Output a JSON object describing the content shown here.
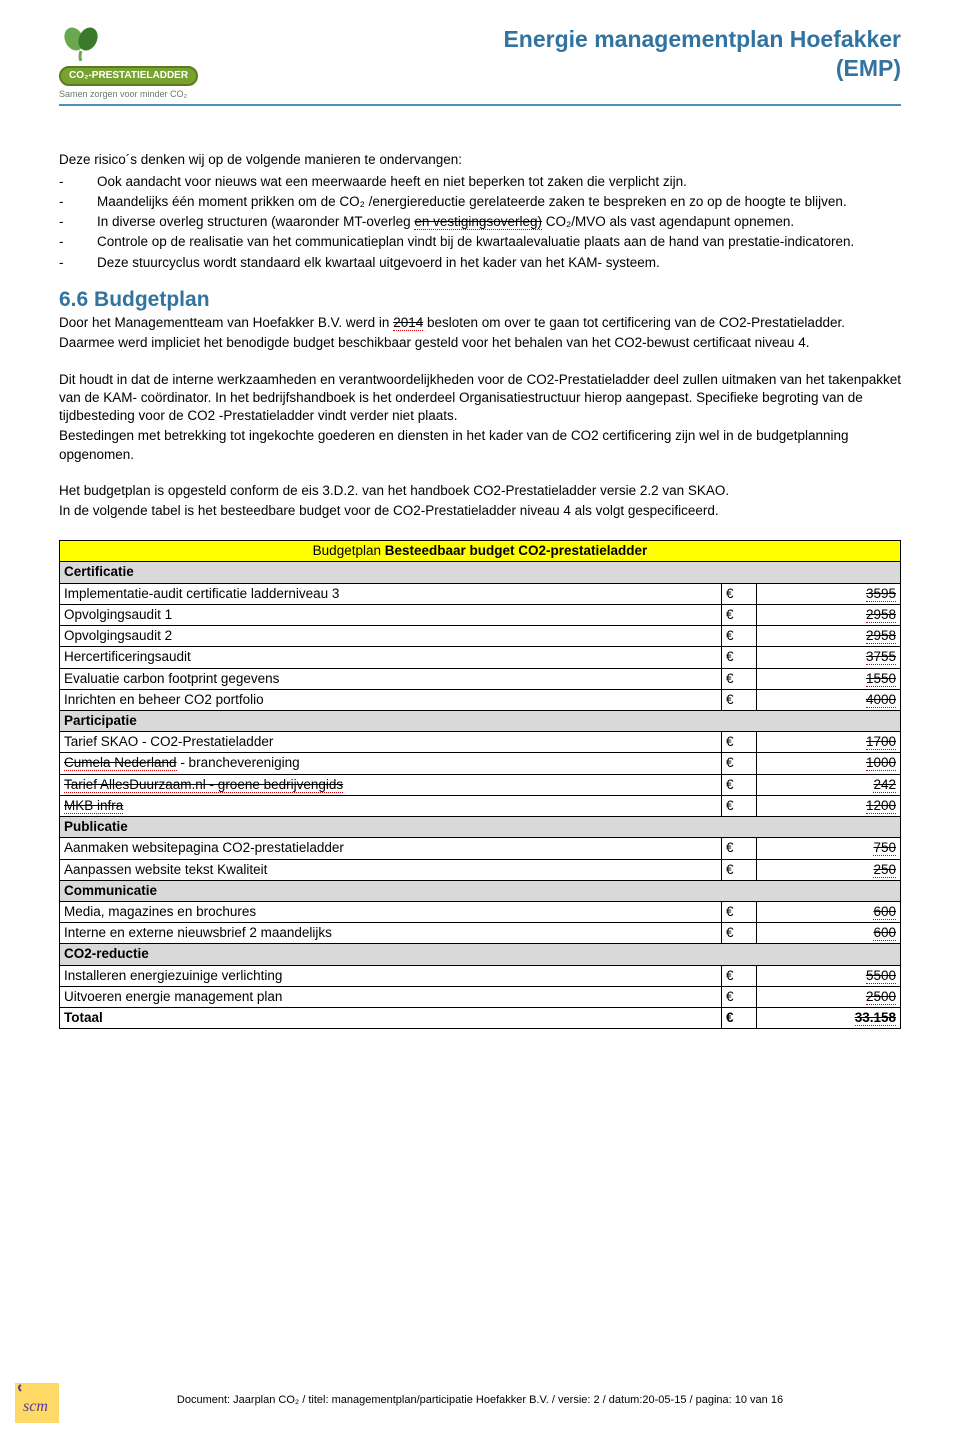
{
  "header": {
    "doc_title_line1": "Energie managementplan Hoefakker",
    "doc_title_line2": "(EMP)",
    "logo_badge": "CO₂-PRESTATIELADDER",
    "logo_tagline": "Samen zorgen voor minder CO₂"
  },
  "intro": "Deze risico´s denken wij op de volgende manieren te ondervangen:",
  "bullets": [
    {
      "indent": true,
      "text": "Ook aandacht voor nieuws wat een meerwaarde heeft en niet beperken tot zaken die verplicht zijn."
    },
    {
      "indent": true,
      "text": "Maandelijks één moment prikken om de CO₂ /energiereductie gerelateerde zaken te bespreken en zo op de hoogte te blijven."
    },
    {
      "indent": true,
      "text_parts": [
        "In diverse overleg structuren (waaronder MT-overleg ",
        {
          "strike": true,
          "dotted": true,
          "text": "en vestigingsoverleg)"
        },
        " CO₂/MVO als vast agendapunt opnemen."
      ]
    },
    {
      "indent": true,
      "text": "Controle op de realisatie van het communicatieplan vindt bij de kwartaalevaluatie plaats aan de hand van prestatie-indicatoren."
    },
    {
      "indent": true,
      "text": "Deze stuurcyclus wordt standaard elk kwartaal uitgevoerd in het kader van het KAM- systeem."
    }
  ],
  "section_heading": "6.6 Budgetplan",
  "para1_parts": [
    "Door het Managementteam van Hoefakker B.V. werd in ",
    {
      "dotted": true,
      "strike": true,
      "text": "2014"
    },
    " besloten om over te gaan tot certificering van de CO2-Prestatieladder."
  ],
  "para2": "Daarmee werd impliciet het benodigde budget beschikbaar gesteld voor het behalen van het CO2-bewust certificaat niveau 4.",
  "para3": "Dit houdt in dat de interne werkzaamheden en verantwoordelijkheden voor de CO2-Prestatieladder deel zullen uitmaken van het takenpakket van de KAM- coördinator. In het bedrijfshandboek is het onderdeel Organisatiestructuur hierop aangepast. Specifieke begroting van de tijdbesteding voor de CO2 -Prestatieladder vindt verder niet plaats.",
  "para4": "Bestedingen met betrekking tot ingekochte goederen en diensten in het kader van de CO2 certificering zijn wel in de budgetplanning opgenomen.",
  "para5": "Het budgetplan is opgesteld conform de eis 3.D.2. van het handboek CO2-Prestatieladder versie 2.2 van SKAO.",
  "para6": "In de volgende tabel is het besteedbare budget voor de CO2-Prestatieladder niveau 4 als volgt gespecificeerd.",
  "table": {
    "title_plain": "Budgetplan ",
    "title_bold": "Besteedbaar budget CO2-prestatieladder",
    "euro": "€",
    "col_widths": {
      "label": "auto",
      "euro": "26px",
      "amount": "135px"
    },
    "colors": {
      "title_bg": "#ffff00",
      "section_bg": "#d9d9d9",
      "border": "#000000"
    },
    "sections": [
      {
        "name": "Certificatie",
        "rows": [
          {
            "label": "Implementatie-audit certificatie ladderniveau 3",
            "amount": "3595",
            "dotted": true,
            "strike": true
          },
          {
            "label": "Opvolgingsaudit 1",
            "amount": "2958",
            "dotted": true,
            "strike": true
          },
          {
            "label": "Opvolgingsaudit 2",
            "amount": "2958",
            "dotted": true,
            "strike": true
          },
          {
            "label": "Hercertificeringsaudit",
            "amount": "3755",
            "dotted": true,
            "strike": true
          },
          {
            "label": "Evaluatie carbon footprint gegevens",
            "amount": "1550",
            "dotted": true,
            "strike": true
          },
          {
            "label": "Inrichten en beheer CO2 portfolio",
            "amount": "4000",
            "dotted": true,
            "strike": true
          }
        ]
      },
      {
        "name": "Participatie",
        "rows": [
          {
            "label": "Tarief SKAO - CO2-Prestatieladder",
            "amount": "1700",
            "dotted": true,
            "strike": true
          },
          {
            "label_parts": [
              {
                "strike": true,
                "dotted": true,
                "text": "Cumela Nederland"
              },
              " - branchevereniging"
            ],
            "amount": "1000",
            "dotted": true,
            "strike": true
          },
          {
            "label_parts": [
              {
                "strike": true,
                "dotted": true,
                "text": "Tarief AllesDuurzaam.nl - groene bedrijvengids"
              }
            ],
            "amount": "242",
            "dotted": true,
            "strike": true
          },
          {
            "label_parts": [
              {
                "strike": true,
                "dotted": true,
                "text": "MKB infra"
              }
            ],
            "amount": "1200",
            "dotted": true,
            "strike": true
          }
        ]
      },
      {
        "name": "Publicatie",
        "rows": [
          {
            "label": "Aanmaken websitepagina CO2-prestatieladder",
            "amount": "750",
            "dotted": true,
            "strike": true
          },
          {
            "label": "Aanpassen website tekst Kwaliteit",
            "amount": "250",
            "dotted": true,
            "strike": true
          }
        ]
      },
      {
        "name": "Communicatie",
        "rows": [
          {
            "label": "Media, magazines en brochures",
            "amount": "600",
            "dotted": true,
            "strike": true
          },
          {
            "label": "Interne en externe nieuwsbrief 2 maandelijks",
            "amount": "600",
            "dotted": true,
            "strike": true
          }
        ]
      },
      {
        "name": "CO2-reductie",
        "rows": [
          {
            "label": "Installeren energiezuinige verlichting",
            "amount": "5500",
            "dotted": true,
            "strike": true
          },
          {
            "label": "Uitvoeren energie management plan",
            "amount": "2500",
            "dotted": true,
            "strike": true
          }
        ]
      }
    ],
    "total_label": "Totaal",
    "total_amount": "33.158",
    "total_dotted": true,
    "total_strike": true
  },
  "footer": "Document: Jaarplan CO₂ / titel: managementplan/participatie  Hoefakker B.V. / versie: 2 / datum:20-05-15 / pagina: 10 van 16"
}
